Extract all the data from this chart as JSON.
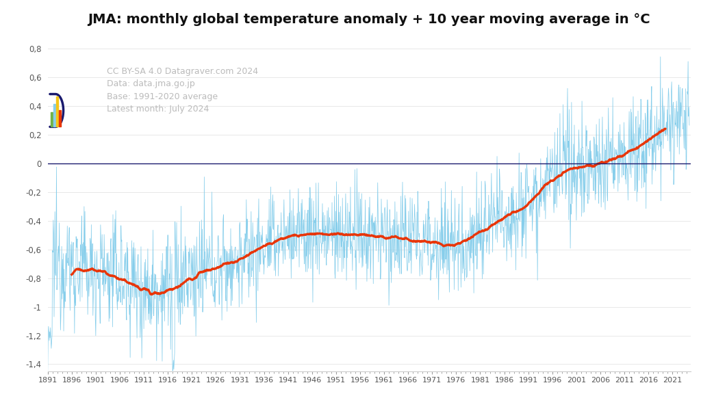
{
  "title": "JMA: monthly global temperature anomaly + 10 year moving average in °C",
  "title_fontsize": 14,
  "background_color": "#ffffff",
  "monthly_line_color": "#87CEEB",
  "moving_avg_color": "#e8360a",
  "zero_line_color": "#1a1a6e",
  "ylim": [
    -1.45,
    0.92
  ],
  "xlim_start": 1891.0,
  "xlim_end": 2024.75,
  "annotation_lines": [
    "CC BY-SA 4.0 Datagraver.com 2024",
    "Data: data.jma.go.jp",
    "Base: 1991-2020 average",
    "Latest month: July 2024"
  ],
  "annotation_color": "#bbbbbb",
  "annotation_fontsize": 9,
  "ytick_vals": [
    -1.4,
    -1.2,
    -1.0,
    -0.8,
    -0.6,
    -0.4,
    -0.2,
    0.0,
    0.2,
    0.4,
    0.6,
    0.8
  ],
  "ytick_labels": [
    "-1,4",
    "-1,2",
    "-1",
    "-0,8",
    "-0,6",
    "-0,4",
    "-0,2",
    "0",
    "0,2",
    "0,4",
    "0,6",
    "0,8"
  ],
  "grid_color": "#e8e8e8",
  "spine_color": "#cccccc",
  "tick_color": "#999999",
  "label_color": "#555555"
}
